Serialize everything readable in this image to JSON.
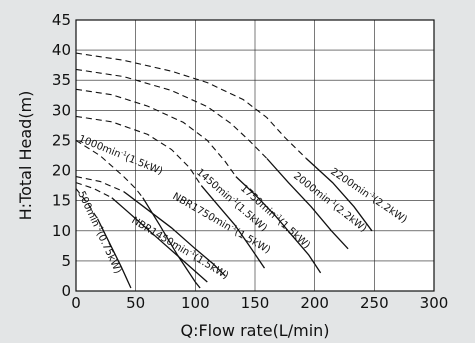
{
  "chart_data": {
    "type": "line",
    "xlabel": "Q:Flow rate(L/min)",
    "ylabel": "H:Total Head(m)",
    "xlim": [
      0,
      300
    ],
    "ylim": [
      0,
      45
    ],
    "xticks": [
      0,
      50,
      100,
      150,
      200,
      250,
      300
    ],
    "yticks": [
      0,
      5,
      10,
      15,
      20,
      25,
      30,
      35,
      40,
      45
    ],
    "grid": true,
    "series": [
      {
        "name": "2200min-1(2.2kW)",
        "label_main": "2200min",
        "label_sup": "-1",
        "label_tail": "(2.2kW)",
        "dashed": [
          [
            0,
            39.5
          ],
          [
            40,
            38.3
          ],
          [
            80,
            36.5
          ],
          [
            110,
            34.6
          ],
          [
            140,
            31.8
          ],
          [
            160,
            28.8
          ],
          [
            175,
            25.5
          ],
          [
            193,
            22.0
          ]
        ],
        "solid": [
          [
            193,
            22.0
          ],
          [
            215,
            18.0
          ],
          [
            233,
            14.0
          ],
          [
            248,
            10.0
          ]
        ]
      },
      {
        "name": "2000min-1(2.2kW)",
        "label_main": "2000min",
        "label_sup": "-1",
        "label_tail": "(2.2kW)",
        "dashed": [
          [
            0,
            36.8
          ],
          [
            40,
            35.6
          ],
          [
            80,
            33.3
          ],
          [
            110,
            30.6
          ],
          [
            130,
            27.8
          ],
          [
            145,
            25.0
          ],
          [
            160,
            22.0
          ]
        ],
        "solid": [
          [
            160,
            22.0
          ],
          [
            178,
            18.0
          ],
          [
            197,
            14.0
          ],
          [
            214,
            10.0
          ],
          [
            228,
            7.0
          ]
        ]
      },
      {
        "name": "1750min-1(1.5kW)",
        "label_main": "1750min",
        "label_sup": "-1",
        "label_tail": "(1.5kW)",
        "dashed": [
          [
            0,
            33.5
          ],
          [
            30,
            32.6
          ],
          [
            60,
            30.7
          ],
          [
            90,
            28.0
          ],
          [
            110,
            25.0
          ],
          [
            125,
            21.5
          ],
          [
            134,
            19.0
          ]
        ],
        "solid": [
          [
            134,
            19.0
          ],
          [
            150,
            16.0
          ],
          [
            167,
            12.5
          ],
          [
            182,
            9.0
          ],
          [
            195,
            6.0
          ],
          [
            205,
            3.0
          ]
        ]
      },
      {
        "name": "1450min-1(1.5kW)",
        "label_main": "1450min",
        "label_sup": "-1",
        "label_tail": "(1.5kW)",
        "dashed": [
          [
            0,
            29.0
          ],
          [
            30,
            28.1
          ],
          [
            60,
            26.0
          ],
          [
            80,
            23.5
          ],
          [
            95,
            20.5
          ],
          [
            105,
            17.5
          ]
        ],
        "solid": [
          [
            105,
            17.5
          ],
          [
            120,
            14.0
          ],
          [
            133,
            11.0
          ],
          [
            147,
            7.0
          ],
          [
            158,
            3.8
          ]
        ]
      },
      {
        "name": "1000min-1(1.5kW)",
        "label_main": "1000min",
        "label_sup": "-1",
        "label_tail": "(1.5kW)",
        "dashed": [
          [
            0,
            25.0
          ],
          [
            20,
            22.5
          ],
          [
            40,
            19.0
          ],
          [
            50,
            17.0
          ],
          [
            56,
            15.5
          ]
        ],
        "solid": [
          [
            56,
            15.5
          ],
          [
            70,
            11.0
          ],
          [
            85,
            6.0
          ],
          [
            100,
            1.5
          ],
          [
            104,
            0.5
          ]
        ]
      },
      {
        "name": "NBR1750min-1(1.5kW)",
        "label_main": "NBR1750min",
        "label_sup": "-1",
        "label_tail": "(1.5kW)",
        "dashed": [
          [
            0,
            19.0
          ],
          [
            20,
            18.2
          ],
          [
            40,
            16.5
          ]
        ],
        "solid": [
          [
            40,
            16.5
          ],
          [
            60,
            13.5
          ],
          [
            80,
            10.5
          ],
          [
            100,
            7.0
          ],
          [
            115,
            4.5
          ],
          [
            125,
            2.5
          ]
        ]
      },
      {
        "name": "NBR1450min-1(1.5kW)",
        "label_main": "NBR1450min",
        "label_sup": "-1",
        "label_tail": "(1.5kW)",
        "dashed": [
          [
            0,
            18.0
          ],
          [
            15,
            17.0
          ],
          [
            30,
            15.5
          ]
        ],
        "solid": [
          [
            30,
            15.5
          ],
          [
            50,
            12.0
          ],
          [
            70,
            8.5
          ],
          [
            90,
            5.0
          ],
          [
            110,
            1.5
          ]
        ]
      },
      {
        "name": "500min-1(0.75kW)",
        "label_main": "500min",
        "label_sup": "-1",
        "label_tail": "(0.75kW)",
        "dashed": [
          [
            0,
            17.0
          ],
          [
            10,
            14.5
          ],
          [
            18,
            12.0
          ]
        ],
        "solid": [
          [
            18,
            12.0
          ],
          [
            28,
            8.0
          ],
          [
            38,
            4.0
          ],
          [
            46,
            0.5
          ]
        ]
      }
    ]
  }
}
